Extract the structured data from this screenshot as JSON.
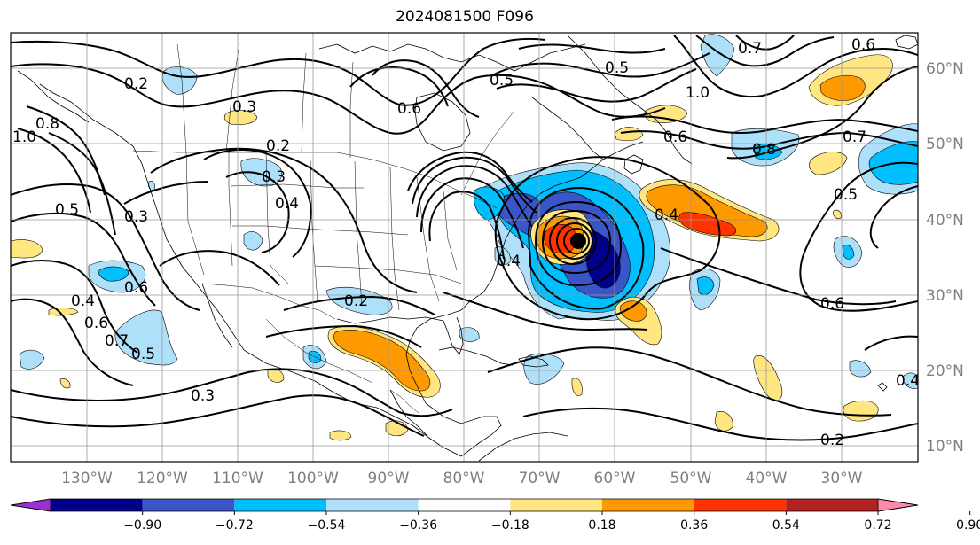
{
  "title": "2024081500 F096",
  "longitude_ticks": [
    "130°W",
    "120°W",
    "110°W",
    "100°W",
    "90°W",
    "80°W",
    "70°W",
    "60°W",
    "50°W",
    "40°W",
    "30°W"
  ],
  "latitude_ticks": [
    "60°N",
    "50°N",
    "40°N",
    "30°N",
    "20°N",
    "10°N"
  ],
  "colorbar": {
    "tick_labels": [
      "−0.90",
      "−0.72",
      "−0.54",
      "−0.36",
      "−0.18",
      "0.18",
      "0.36",
      "0.54",
      "0.72",
      "0.90"
    ],
    "colors": [
      "#9b30d0",
      "#00008b",
      "#3a55c8",
      "#00bfff",
      "#aee0fa",
      "#ffffff",
      "#ffe680",
      "#ff9900",
      "#ff3300",
      "#b22222",
      "#ff88aa"
    ]
  },
  "contour_labels": [
    "0.6",
    "0.5",
    "0.5",
    "0.7",
    "0.6",
    "1.0",
    "0.2",
    "0.3",
    "0.6",
    "0.8",
    "0.7",
    "0.5",
    "0.3",
    "0.4",
    "0.3",
    "0.4",
    "0.2",
    "0.5",
    "0.4",
    "0.6",
    "0.6",
    "0.7",
    "0.5",
    "0.3",
    "0.6",
    "0.2",
    "0.4",
    "0.8",
    "0.2",
    "1.0",
    "0.4"
  ],
  "colors": {
    "frame": "#000000",
    "grid": "#999999",
    "contour": "#000000"
  },
  "marker": "storm-center-dot"
}
